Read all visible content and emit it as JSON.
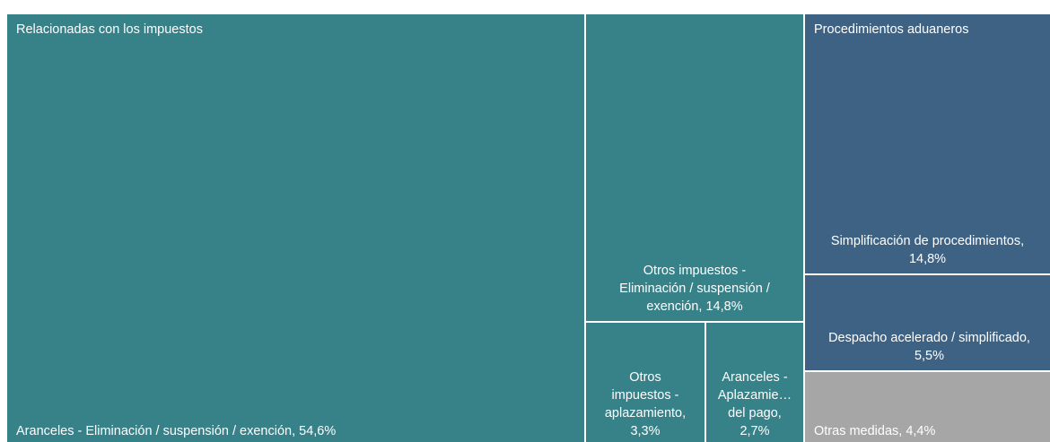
{
  "chart_data": {
    "type": "treemap",
    "title": "",
    "groups": [
      {
        "name": "Relacionadas con los impuestos",
        "color": "#378189",
        "items": [
          {
            "label": "Aranceles - Eliminación / suspensión / exención, 54,6%",
            "value": 54.6
          },
          {
            "label": "Otros impuestos - Eliminación / suspensión / exención, 14,8%",
            "value": 14.8
          },
          {
            "label": "Otros impuestos - aplazamiento, 3,3%",
            "value": 3.3
          },
          {
            "label": "Aranceles - Aplazamie… del pago, 2,7%",
            "value": 2.7
          }
        ]
      },
      {
        "name": "Procedimientos aduaneros",
        "color": "#3E6283",
        "items": [
          {
            "label": "Simplificación de procedimientos, 14,8%",
            "value": 14.8
          },
          {
            "label": "Despacho acelerado / simplificado, 5,5%",
            "value": 5.5
          }
        ]
      },
      {
        "name": "",
        "color": "#A6A6A6",
        "items": [
          {
            "label": "Otras medidas, 4,4%",
            "value": 4.4
          }
        ]
      }
    ]
  }
}
